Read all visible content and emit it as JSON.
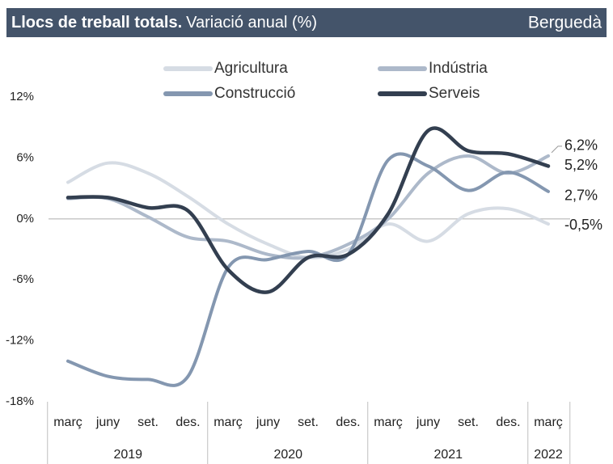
{
  "chart_data": {
    "type": "line",
    "title": "Llocs de treball totals.",
    "subtitle": "Variació anual (%)",
    "region": "Berguedà",
    "categories": [
      "març",
      "juny",
      "set.",
      "des.",
      "març",
      "juny",
      "set.",
      "des.",
      "març",
      "juny",
      "set.",
      "des.",
      "març"
    ],
    "years": [
      "2019",
      "2020",
      "2021",
      "2022"
    ],
    "series": [
      {
        "name": "Agricultura",
        "color": "#d6dce4",
        "values": [
          3.6,
          5.5,
          4.5,
          2.2,
          -0.5,
          -2.5,
          -3.8,
          -3.0,
          -0.5,
          -2.2,
          0.5,
          1.0,
          -0.5
        ],
        "value_labels": [
          null,
          null,
          null,
          null,
          null,
          null,
          null,
          null,
          null,
          null,
          null,
          null,
          "-0,5%"
        ]
      },
      {
        "name": "Indústria",
        "color": "#adb9ca",
        "values": [
          2.0,
          2.0,
          0.2,
          -1.8,
          -2.2,
          -3.5,
          -3.8,
          -2.5,
          0.0,
          4.5,
          6.2,
          4.5,
          6.2
        ],
        "value_labels": [
          null,
          null,
          null,
          null,
          null,
          null,
          null,
          null,
          null,
          null,
          null,
          null,
          "6,2%"
        ]
      },
      {
        "name": "Construcció",
        "color": "#8497b0",
        "values": [
          -14.0,
          -15.5,
          -15.8,
          -15.5,
          -4.8,
          -4.0,
          -3.2,
          -3.5,
          5.8,
          5.2,
          2.8,
          4.6,
          2.7
        ],
        "value_labels": [
          null,
          null,
          null,
          null,
          null,
          null,
          null,
          null,
          null,
          null,
          null,
          null,
          "2,7%"
        ]
      },
      {
        "name": "Serveis",
        "color": "#333f50",
        "values": [
          2.1,
          2.1,
          1.1,
          0.8,
          -5.0,
          -7.2,
          -3.8,
          -3.5,
          0.5,
          8.7,
          6.7,
          6.4,
          5.2
        ],
        "value_labels": [
          null,
          null,
          null,
          null,
          null,
          null,
          null,
          null,
          null,
          null,
          null,
          null,
          "5,2%"
        ]
      }
    ],
    "ylim": [
      -18,
      12
    ],
    "yticks": [
      {
        "value": -18,
        "label": "-18%"
      },
      {
        "value": -12,
        "label": "-12%"
      },
      {
        "value": -6,
        "label": "-6%"
      },
      {
        "value": 0,
        "label": "0%"
      },
      {
        "value": 6,
        "label": "6%"
      },
      {
        "value": 12,
        "label": "12%"
      }
    ],
    "grid": false
  }
}
